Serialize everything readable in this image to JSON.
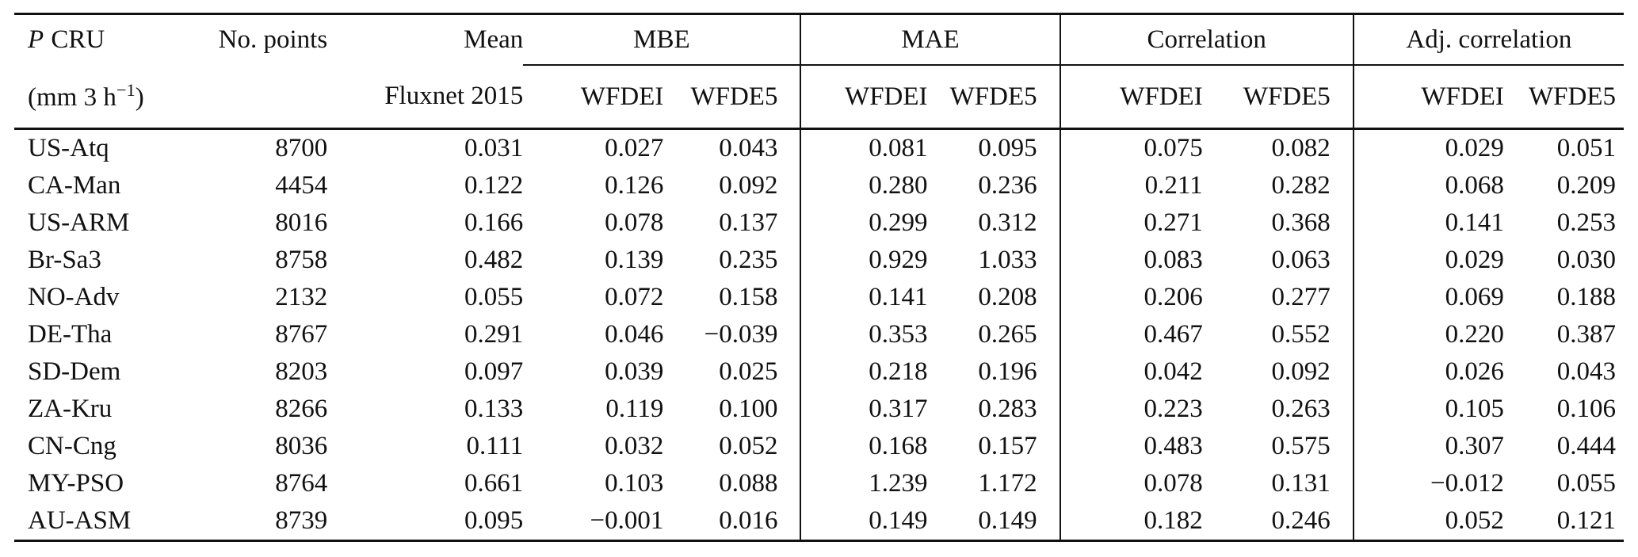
{
  "table": {
    "header": {
      "site_symbol": "P",
      "site_name": "CRU",
      "unit_prefix": "(mm 3 h",
      "unit_sup": "−1",
      "unit_suffix": ")",
      "no_points": "No. points",
      "mean_line1": "Mean",
      "mean_line2": "Fluxnet 2015",
      "groups": {
        "mbe": "MBE",
        "mae": "MAE",
        "correlation": "Correlation",
        "adj_correlation": "Adj. correlation"
      },
      "sub_wfdei": "WFDEI",
      "sub_wfde5": "WFDE5"
    },
    "rows": [
      {
        "site": "US-Atq",
        "points": "8700",
        "mean": "0.031",
        "mbe_wfdei": "0.027",
        "mbe_wfde5": "0.043",
        "mae_wfdei": "0.081",
        "mae_wfde5": "0.095",
        "corr_wfdei": "0.075",
        "corr_wfde5": "0.082",
        "adj_wfdei": "0.029",
        "adj_wfde5": "0.051"
      },
      {
        "site": "CA-Man",
        "points": "4454",
        "mean": "0.122",
        "mbe_wfdei": "0.126",
        "mbe_wfde5": "0.092",
        "mae_wfdei": "0.280",
        "mae_wfde5": "0.236",
        "corr_wfdei": "0.211",
        "corr_wfde5": "0.282",
        "adj_wfdei": "0.068",
        "adj_wfde5": "0.209"
      },
      {
        "site": "US-ARM",
        "points": "8016",
        "mean": "0.166",
        "mbe_wfdei": "0.078",
        "mbe_wfde5": "0.137",
        "mae_wfdei": "0.299",
        "mae_wfde5": "0.312",
        "corr_wfdei": "0.271",
        "corr_wfde5": "0.368",
        "adj_wfdei": "0.141",
        "adj_wfde5": "0.253"
      },
      {
        "site": "Br-Sa3",
        "points": "8758",
        "mean": "0.482",
        "mbe_wfdei": "0.139",
        "mbe_wfde5": "0.235",
        "mae_wfdei": "0.929",
        "mae_wfde5": "1.033",
        "corr_wfdei": "0.083",
        "corr_wfde5": "0.063",
        "adj_wfdei": "0.029",
        "adj_wfde5": "0.030"
      },
      {
        "site": "NO-Adv",
        "points": "2132",
        "mean": "0.055",
        "mbe_wfdei": "0.072",
        "mbe_wfde5": "0.158",
        "mae_wfdei": "0.141",
        "mae_wfde5": "0.208",
        "corr_wfdei": "0.206",
        "corr_wfde5": "0.277",
        "adj_wfdei": "0.069",
        "adj_wfde5": "0.188"
      },
      {
        "site": "DE-Tha",
        "points": "8767",
        "mean": "0.291",
        "mbe_wfdei": "0.046",
        "mbe_wfde5": "−0.039",
        "mae_wfdei": "0.353",
        "mae_wfde5": "0.265",
        "corr_wfdei": "0.467",
        "corr_wfde5": "0.552",
        "adj_wfdei": "0.220",
        "adj_wfde5": "0.387"
      },
      {
        "site": "SD-Dem",
        "points": "8203",
        "mean": "0.097",
        "mbe_wfdei": "0.039",
        "mbe_wfde5": "0.025",
        "mae_wfdei": "0.218",
        "mae_wfde5": "0.196",
        "corr_wfdei": "0.042",
        "corr_wfde5": "0.092",
        "adj_wfdei": "0.026",
        "adj_wfde5": "0.043"
      },
      {
        "site": "ZA-Kru",
        "points": "8266",
        "mean": "0.133",
        "mbe_wfdei": "0.119",
        "mbe_wfde5": "0.100",
        "mae_wfdei": "0.317",
        "mae_wfde5": "0.283",
        "corr_wfdei": "0.223",
        "corr_wfde5": "0.263",
        "adj_wfdei": "0.105",
        "adj_wfde5": "0.106"
      },
      {
        "site": "CN-Cng",
        "points": "8036",
        "mean": "0.111",
        "mbe_wfdei": "0.032",
        "mbe_wfde5": "0.052",
        "mae_wfdei": "0.168",
        "mae_wfde5": "0.157",
        "corr_wfdei": "0.483",
        "corr_wfde5": "0.575",
        "adj_wfdei": "0.307",
        "adj_wfde5": "0.444"
      },
      {
        "site": "MY-PSO",
        "points": "8764",
        "mean": "0.661",
        "mbe_wfdei": "0.103",
        "mbe_wfde5": "0.088",
        "mae_wfdei": "1.239",
        "mae_wfde5": "1.172",
        "corr_wfdei": "0.078",
        "corr_wfde5": "0.131",
        "adj_wfdei": "−0.012",
        "adj_wfde5": "0.055"
      },
      {
        "site": "AU-ASM",
        "points": "8739",
        "mean": "0.095",
        "mbe_wfdei": "−0.001",
        "mbe_wfde5": "0.016",
        "mae_wfdei": "0.149",
        "mae_wfde5": "0.149",
        "corr_wfdei": "0.182",
        "corr_wfde5": "0.246",
        "adj_wfdei": "0.052",
        "adj_wfde5": "0.121"
      }
    ]
  }
}
